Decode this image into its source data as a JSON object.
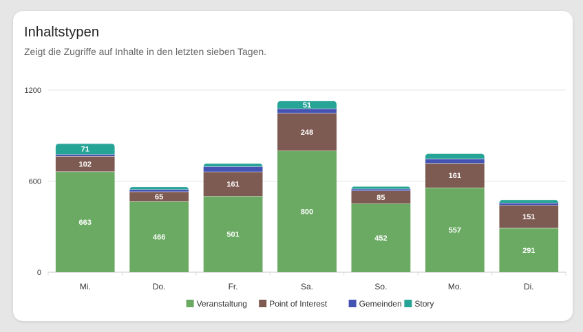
{
  "card": {
    "title": "Inhaltstypen",
    "subtitle": "Zeigt die Zugriffe auf Inhalte in den letzten sieben Tagen."
  },
  "chart_data": {
    "type": "bar",
    "stacked": true,
    "title": "",
    "xlabel": "",
    "ylabel": "",
    "ylim": [
      0,
      1200
    ],
    "yticks": [
      0,
      600,
      1200
    ],
    "grid": true,
    "legend_position": "bottom",
    "categories": [
      "Mi.",
      "Do.",
      "Fr.",
      "Sa.",
      "So.",
      "Mo.",
      "Di."
    ],
    "series": [
      {
        "name": "Veranstaltung",
        "color": "#6aaa62",
        "values": [
          663,
          466,
          501,
          800,
          452,
          557,
          291
        ],
        "show_labels": true
      },
      {
        "name": "Point of Interest",
        "color": "#7e5b52",
        "values": [
          102,
          65,
          161,
          248,
          85,
          161,
          151
        ],
        "show_labels": true
      },
      {
        "name": "Gemeinden",
        "color": "#4553b3",
        "values": [
          12,
          15,
          35,
          30,
          12,
          30,
          15
        ],
        "show_labels": false
      },
      {
        "name": "Story",
        "color": "#26a496",
        "values": [
          71,
          17,
          20,
          51,
          17,
          34,
          20
        ],
        "label_values": [
          71,
          null,
          null,
          51,
          null,
          null,
          null
        ]
      }
    ]
  }
}
